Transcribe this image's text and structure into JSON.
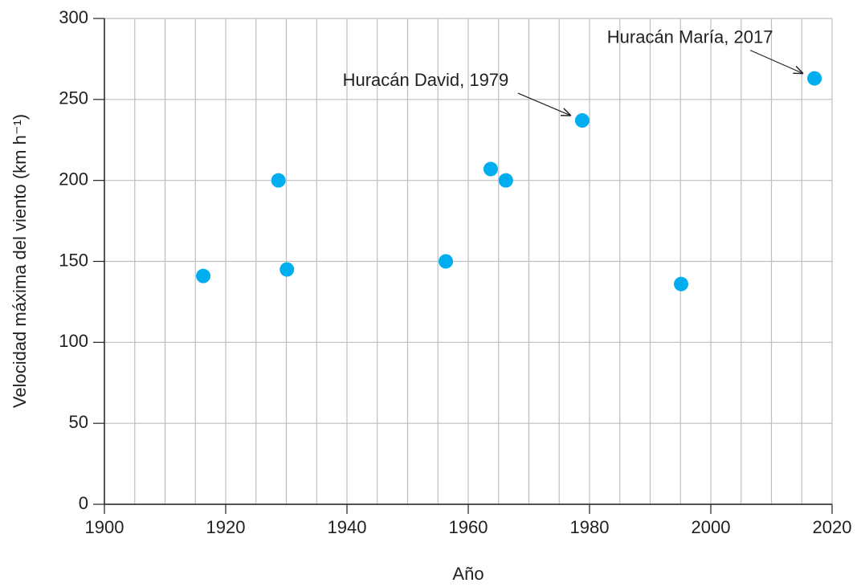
{
  "chart_data": {
    "type": "scatter",
    "x_label": "Año",
    "y_label": "Velocidad máxima del viento (km h⁻¹)",
    "x": [
      1916.3,
      1928.7,
      1930.1,
      1956.3,
      1963.7,
      1966.2,
      1978.8,
      1995.1,
      2017.1
    ],
    "values": [
      141,
      200,
      145,
      150,
      207,
      200,
      237,
      136,
      263
    ],
    "color": "#00aeef",
    "xlim": [
      1900,
      2020
    ],
    "xticks": [
      1900,
      1920,
      1940,
      1960,
      1980,
      2000,
      2020
    ],
    "xgrid_minor": [
      1905,
      1910,
      1915,
      1925,
      1930,
      1935,
      1945,
      1950,
      1955,
      1965,
      1970,
      1975,
      1985,
      1990,
      1995,
      2005,
      2010,
      2015
    ],
    "ylim": [
      0,
      300
    ],
    "yticks": [
      0,
      50,
      100,
      150,
      200,
      250,
      300
    ],
    "grid": true,
    "annotations": [
      {
        "text": "Huracán David, 1979"
      },
      {
        "text": "Huracán María, 2017"
      }
    ]
  }
}
